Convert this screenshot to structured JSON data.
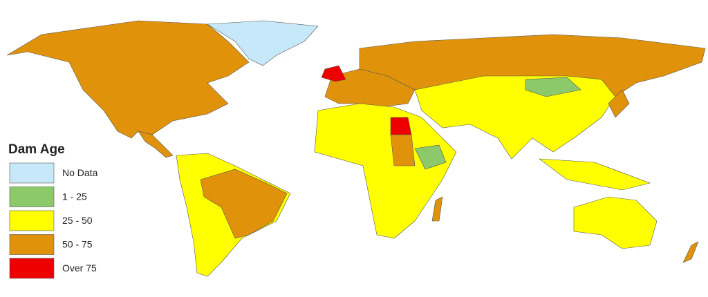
{
  "legend": {
    "title": "Dam Age",
    "items": [
      {
        "label": "No Data",
        "color": "#c6e8f8"
      },
      {
        "label": "1 - 25",
        "color": "#8cc96a"
      },
      {
        "label": "25 - 50",
        "color": "#ffff00"
      },
      {
        "label": "50 - 75",
        "color": "#e0930a"
      },
      {
        "label": "Over 75",
        "color": "#ee0000"
      }
    ]
  }
}
